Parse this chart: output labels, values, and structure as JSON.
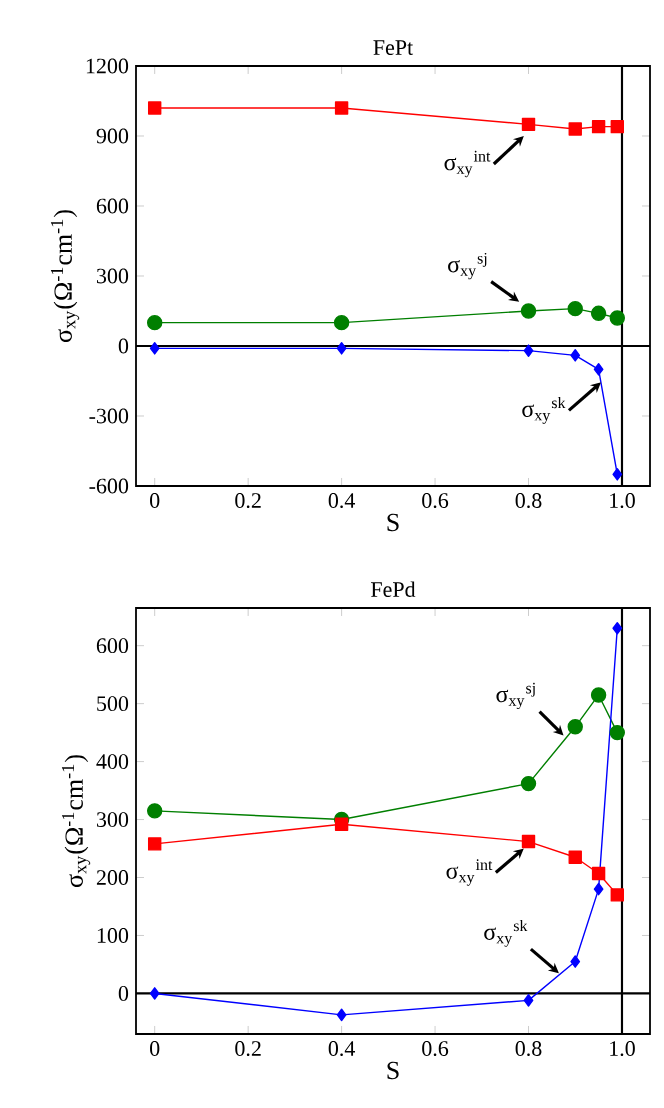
{
  "chart_data": [
    {
      "type": "line",
      "title": "FePt",
      "xlabel": "S",
      "ylabel": "σ$_{xy}$(Ω$^{-1}$cm$^{-1}$)",
      "x": [
        0,
        0.4,
        0.8,
        0.9,
        0.95,
        0.99
      ],
      "series": [
        {
          "color": "#ff0000",
          "marker": "square",
          "values": [
            1020,
            1020,
            950,
            930,
            940,
            940
          ]
        },
        {
          "color": "#007f00",
          "marker": "circle",
          "values": [
            100,
            100,
            150,
            160,
            140,
            120
          ]
        },
        {
          "color": "#0000ff",
          "marker": "diamond",
          "values": [
            -10,
            -10,
            -20,
            -40,
            -100,
            -550
          ]
        }
      ],
      "xlim": [
        -0.04,
        1.06
      ],
      "xticks": [
        0,
        0.2,
        0.4,
        0.6,
        0.8,
        {
          "value": 1,
          "label": "1.0"
        }
      ],
      "ylim": [
        -600,
        1200
      ],
      "yticks": [
        -600,
        -300,
        0,
        300,
        600,
        900,
        1200
      ],
      "ref_lines": [
        {
          "axis": "y",
          "value": 0,
          "color": "#000000"
        },
        {
          "axis": "x",
          "value": 1,
          "color": "#000000"
        }
      ],
      "annotations": [
        {
          "text": "σ$_{xy}$$^{int}$",
          "x": 0.79,
          "y": 900
        },
        {
          "text": "σ$_{xy}$$^{sj}$",
          "x": 0.78,
          "y": 190
        },
        {
          "text": "σ$_{xy}$$^{sk}$",
          "x": 0.955,
          "y": -156
        }
      ],
      "grid": false
    },
    {
      "type": "line",
      "title": "FePd",
      "xlabel": "S",
      "ylabel": "σ$_{xy}$(Ω$^{-1}$cm$^{-1}$)",
      "x": [
        0,
        0.4,
        0.8,
        0.9,
        0.95,
        0.99
      ],
      "series": [
        {
          "color": "#007f00",
          "marker": "circle",
          "values": [
            315,
            300,
            362,
            460,
            515,
            450
          ]
        },
        {
          "color": "#ff0000",
          "marker": "square",
          "values": [
            258,
            292,
            262,
            235,
            207,
            170
          ]
        },
        {
          "color": "#0000ff",
          "marker": "diamond",
          "values": [
            0,
            -37,
            -12,
            55,
            180,
            630
          ]
        }
      ],
      "xlim": [
        -0.04,
        1.06
      ],
      "xticks": [
        0,
        0.2,
        0.4,
        0.6,
        0.8,
        {
          "value": 1,
          "label": "1.0"
        }
      ],
      "ylim": [
        -70,
        665
      ],
      "yticks": [
        0,
        100,
        200,
        300,
        400,
        500,
        600
      ],
      "ref_lines": [
        {
          "axis": "y",
          "value": 0,
          "color": "#000000"
        },
        {
          "axis": "x",
          "value": 1,
          "color": "#000000"
        }
      ],
      "annotations": [
        {
          "text": "σ$_{xy}$$^{sj}$",
          "x": 0.875,
          "y": 445
        },
        {
          "text": "σ$_{xy}$$^{int}$",
          "x": 0.79,
          "y": 250
        },
        {
          "text": "σ$_{xy}$$^{sk}$",
          "x": 0.865,
          "y": 35
        }
      ],
      "grid": false
    }
  ]
}
